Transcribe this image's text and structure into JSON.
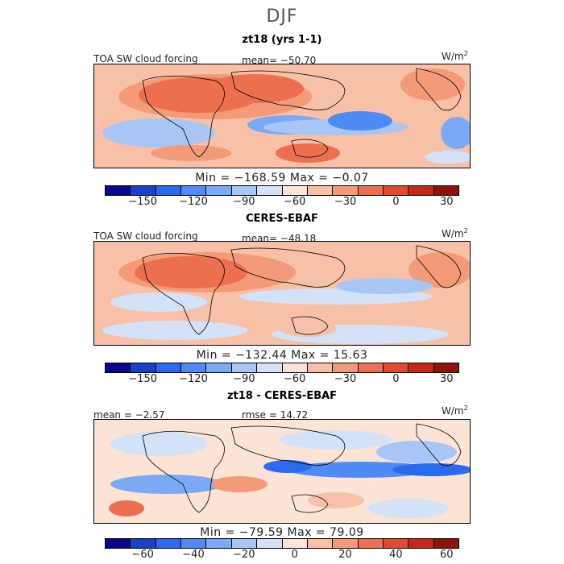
{
  "page_title": "DJF",
  "colors": {
    "scale": [
      "#08088a",
      "#1840c8",
      "#2a6af0",
      "#4f8bf6",
      "#7aaaf6",
      "#a7c6f5",
      "#d3e2f7",
      "#fbe3d6",
      "#f8c0a6",
      "#f39a78",
      "#ec7050",
      "#e24a2d",
      "#c42816",
      "#8e1208"
    ]
  },
  "chart_data": [
    {
      "type": "heatmap",
      "title": "zt18 (yrs 1-1)",
      "label": "TOA SW cloud forcing",
      "mean": "mean= −50.70",
      "unit": "W/m",
      "unit_exp": "2",
      "minmax": "Min = −168.59  Max =  −0.07",
      "min": -168.59,
      "max": -0.07,
      "colorbar_ticks": [
        "−150",
        "−120",
        "−90",
        "−60",
        "−30",
        "0",
        "30"
      ],
      "colorbar_tick_positions": [
        1.5,
        3.5,
        5.5,
        7.5,
        9.5,
        11.5,
        13.5
      ]
    },
    {
      "type": "heatmap",
      "title": "CERES-EBAF",
      "label": "TOA SW cloud forcing",
      "mean": "mean= −48.18",
      "unit": "W/m",
      "unit_exp": "2",
      "minmax": "Min = −132.44  Max =  15.63",
      "min": -132.44,
      "max": 15.63,
      "colorbar_ticks": [
        "−150",
        "−120",
        "−90",
        "−60",
        "−30",
        "0",
        "30"
      ],
      "colorbar_tick_positions": [
        1.5,
        3.5,
        5.5,
        7.5,
        9.5,
        11.5,
        13.5
      ]
    },
    {
      "type": "heatmap",
      "title": "zt18 - CERES-EBAF",
      "mean": "mean =  −2.57",
      "rmse": "rmse =  14.72",
      "unit": "W/m",
      "unit_exp": "2",
      "minmax": "Min = −79.59  Max =  79.09",
      "min": -79.59,
      "max": 79.09,
      "colorbar_ticks": [
        "−60",
        "−40",
        "−20",
        "0",
        "20",
        "40",
        "60"
      ],
      "colorbar_tick_positions": [
        1.5,
        3.5,
        5.5,
        7.5,
        9.5,
        11.5,
        13.5
      ]
    }
  ]
}
